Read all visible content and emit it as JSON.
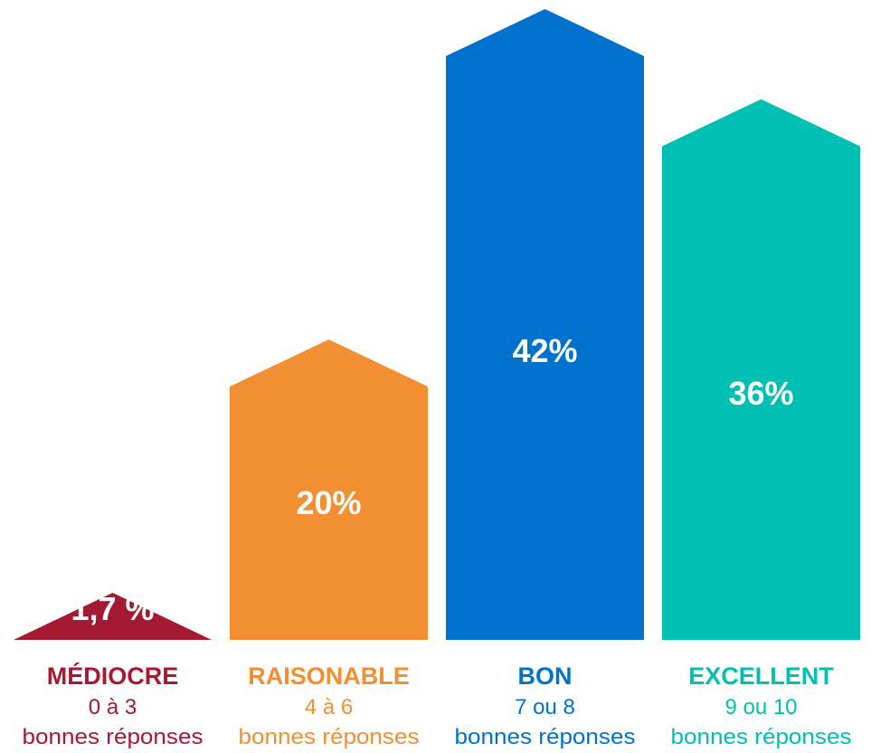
{
  "chart_data": {
    "type": "bar",
    "categories": [
      {
        "name": "MÉDIOCRE",
        "range": "0 à 3",
        "sub": "bonnes réponses",
        "value": 1.7,
        "label": "1,7 %",
        "color": "#a51a33"
      },
      {
        "name": "RAISONABLE",
        "range": "4 à 6",
        "sub": "bonnes réponses",
        "value": 20,
        "label": "20%",
        "color": "#f28f32"
      },
      {
        "name": "BON",
        "range": "7 ou 8",
        "sub": "bonnes réponses",
        "value": 42,
        "label": "42%",
        "color": "#0072ce"
      },
      {
        "name": "EXCELLENT",
        "range": "9 ou 10",
        "sub": "bonnes réponses",
        "value": 36,
        "label": "36%",
        "color": "#00bfb3"
      }
    ],
    "values": [
      1.7,
      20,
      42,
      36
    ],
    "title": "",
    "xlabel": "",
    "ylabel": "",
    "ylim": [
      0,
      42
    ]
  }
}
